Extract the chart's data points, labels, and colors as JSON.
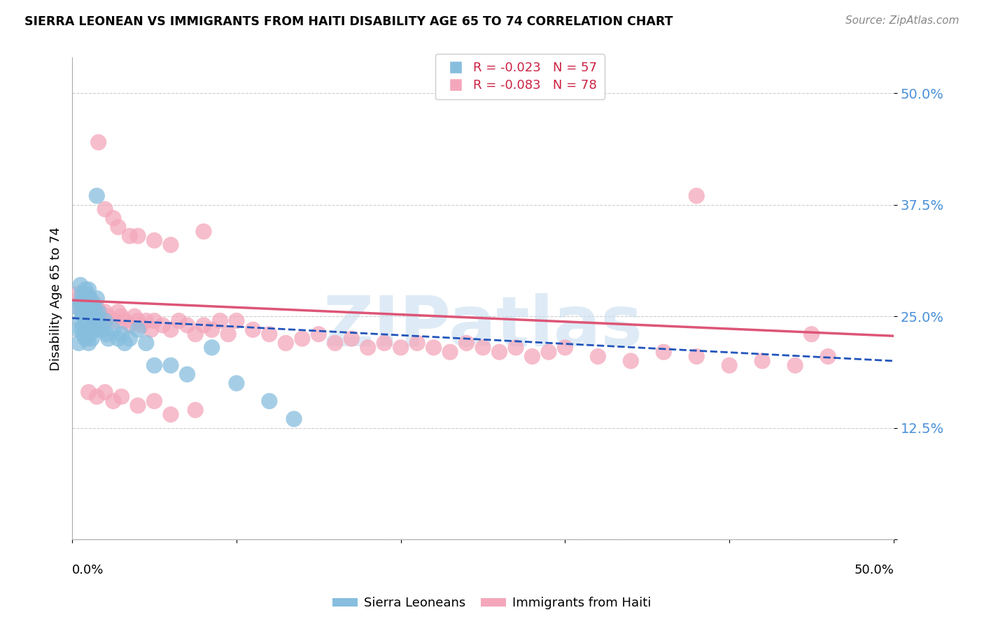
{
  "title": "SIERRA LEONEAN VS IMMIGRANTS FROM HAITI DISABILITY AGE 65 TO 74 CORRELATION CHART",
  "source": "Source: ZipAtlas.com",
  "ylabel": "Disability Age 65 to 74",
  "y_ticks": [
    0.0,
    0.125,
    0.25,
    0.375,
    0.5
  ],
  "y_tick_labels": [
    "",
    "12.5%",
    "25.0%",
    "37.5%",
    "50.0%"
  ],
  "x_range": [
    0.0,
    0.5
  ],
  "y_range": [
    0.0,
    0.54
  ],
  "legend_r1": "R = -0.023",
  "legend_n1": "N = 57",
  "legend_r2": "R = -0.083",
  "legend_n2": "N = 78",
  "color_blue": "#87bede",
  "color_pink": "#f4a7bb",
  "line_blue": "#2255bb",
  "line_pink": "#dd5577",
  "watermark": "ZIPatlas",
  "sierra_x": [
    0.003,
    0.004,
    0.004,
    0.005,
    0.005,
    0.005,
    0.006,
    0.006,
    0.006,
    0.007,
    0.007,
    0.007,
    0.008,
    0.008,
    0.008,
    0.008,
    0.009,
    0.009,
    0.009,
    0.01,
    0.01,
    0.01,
    0.01,
    0.01,
    0.011,
    0.011,
    0.011,
    0.012,
    0.012,
    0.012,
    0.013,
    0.013,
    0.014,
    0.014,
    0.015,
    0.015,
    0.016,
    0.017,
    0.018,
    0.02,
    0.021,
    0.022,
    0.025,
    0.028,
    0.03,
    0.032,
    0.035,
    0.04,
    0.045,
    0.05,
    0.06,
    0.07,
    0.085,
    0.1,
    0.12,
    0.135,
    0.015
  ],
  "sierra_y": [
    0.26,
    0.235,
    0.22,
    0.285,
    0.265,
    0.245,
    0.275,
    0.255,
    0.235,
    0.27,
    0.25,
    0.23,
    0.28,
    0.265,
    0.245,
    0.225,
    0.275,
    0.255,
    0.235,
    0.28,
    0.265,
    0.25,
    0.235,
    0.22,
    0.27,
    0.25,
    0.23,
    0.265,
    0.245,
    0.225,
    0.26,
    0.24,
    0.255,
    0.235,
    0.27,
    0.245,
    0.255,
    0.24,
    0.235,
    0.245,
    0.23,
    0.225,
    0.235,
    0.225,
    0.23,
    0.22,
    0.225,
    0.235,
    0.22,
    0.195,
    0.195,
    0.185,
    0.215,
    0.175,
    0.155,
    0.135,
    0.385
  ],
  "haiti_x": [
    0.003,
    0.004,
    0.005,
    0.006,
    0.007,
    0.008,
    0.009,
    0.01,
    0.01,
    0.011,
    0.012,
    0.013,
    0.014,
    0.015,
    0.016,
    0.017,
    0.018,
    0.02,
    0.022,
    0.025,
    0.028,
    0.03,
    0.032,
    0.035,
    0.038,
    0.04,
    0.042,
    0.045,
    0.048,
    0.05,
    0.055,
    0.06,
    0.065,
    0.07,
    0.075,
    0.08,
    0.085,
    0.09,
    0.095,
    0.1,
    0.11,
    0.12,
    0.13,
    0.14,
    0.15,
    0.16,
    0.17,
    0.18,
    0.19,
    0.2,
    0.21,
    0.22,
    0.23,
    0.24,
    0.25,
    0.26,
    0.27,
    0.28,
    0.29,
    0.3,
    0.32,
    0.34,
    0.36,
    0.38,
    0.4,
    0.42,
    0.44,
    0.46,
    0.01,
    0.015,
    0.02,
    0.025,
    0.03,
    0.04,
    0.05,
    0.06,
    0.075,
    0.45
  ],
  "haiti_y": [
    0.275,
    0.26,
    0.27,
    0.265,
    0.255,
    0.265,
    0.26,
    0.27,
    0.25,
    0.26,
    0.255,
    0.265,
    0.255,
    0.26,
    0.25,
    0.255,
    0.245,
    0.255,
    0.25,
    0.245,
    0.255,
    0.25,
    0.245,
    0.24,
    0.25,
    0.245,
    0.24,
    0.245,
    0.235,
    0.245,
    0.24,
    0.235,
    0.245,
    0.24,
    0.23,
    0.24,
    0.235,
    0.245,
    0.23,
    0.245,
    0.235,
    0.23,
    0.22,
    0.225,
    0.23,
    0.22,
    0.225,
    0.215,
    0.22,
    0.215,
    0.22,
    0.215,
    0.21,
    0.22,
    0.215,
    0.21,
    0.215,
    0.205,
    0.21,
    0.215,
    0.205,
    0.2,
    0.21,
    0.205,
    0.195,
    0.2,
    0.195,
    0.205,
    0.165,
    0.16,
    0.165,
    0.155,
    0.16,
    0.15,
    0.155,
    0.14,
    0.145,
    0.23
  ],
  "haiti_outliers_x": [
    0.016,
    0.02,
    0.025,
    0.028,
    0.035,
    0.04,
    0.05,
    0.06,
    0.08,
    0.38
  ],
  "haiti_outliers_y": [
    0.445,
    0.37,
    0.36,
    0.35,
    0.34,
    0.34,
    0.335,
    0.33,
    0.345,
    0.385
  ],
  "blue_line_x0": 0.0,
  "blue_line_y0": 0.248,
  "blue_line_x1": 0.5,
  "blue_line_y1": 0.2,
  "pink_line_x0": 0.0,
  "pink_line_y0": 0.268,
  "pink_line_x1": 0.5,
  "pink_line_y1": 0.228
}
